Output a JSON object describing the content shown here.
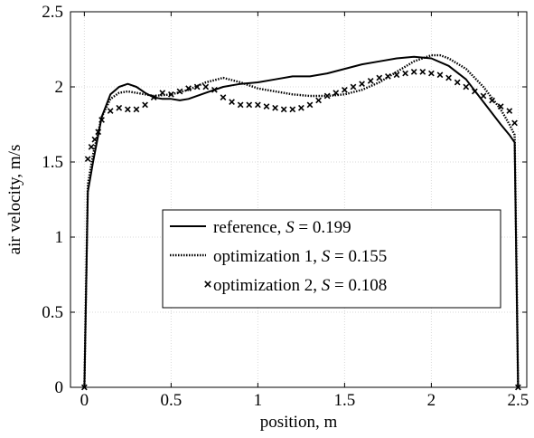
{
  "chart_data": {
    "type": "line",
    "xlabel": "position, m",
    "ylabel": "air velocity, m/s",
    "xlim": [
      -0.08,
      2.55
    ],
    "ylim": [
      0,
      2.5
    ],
    "xticks": [
      0,
      0.5,
      1,
      1.5,
      2,
      2.5
    ],
    "xtick_labels": [
      "0",
      "0.5",
      "1",
      "1.5",
      "2",
      "2.5"
    ],
    "yticks": [
      0,
      0.5,
      1,
      1.5,
      2,
      2.5
    ],
    "ytick_labels": [
      "0",
      "0.5",
      "1",
      "1.5",
      "2",
      "2.5"
    ],
    "grid": true,
    "legend_position": "center-right",
    "series": [
      {
        "name_prefix": "reference, ",
        "name_var": "S",
        "name_suffix": " = 0.199",
        "style": "solid",
        "color": "#000000",
        "x": [
          0,
          0.02,
          0.05,
          0.1,
          0.15,
          0.2,
          0.25,
          0.3,
          0.35,
          0.4,
          0.45,
          0.5,
          0.55,
          0.6,
          0.7,
          0.8,
          0.9,
          1.0,
          1.1,
          1.2,
          1.3,
          1.4,
          1.5,
          1.6,
          1.7,
          1.8,
          1.9,
          2.0,
          2.1,
          2.2,
          2.3,
          2.4,
          2.45,
          2.48,
          2.5
        ],
        "y": [
          0,
          1.3,
          1.5,
          1.8,
          1.95,
          2.0,
          2.02,
          2.0,
          1.96,
          1.93,
          1.92,
          1.92,
          1.91,
          1.92,
          1.96,
          2.0,
          2.02,
          2.03,
          2.05,
          2.07,
          2.07,
          2.09,
          2.12,
          2.15,
          2.17,
          2.19,
          2.2,
          2.19,
          2.14,
          2.05,
          1.9,
          1.75,
          1.68,
          1.63,
          0
        ]
      },
      {
        "name_prefix": "optimization 1, ",
        "name_var": "S",
        "name_suffix": " = 0.155",
        "style": "dotted",
        "color": "#000000",
        "x": [
          0,
          0.02,
          0.05,
          0.1,
          0.15,
          0.2,
          0.25,
          0.3,
          0.4,
          0.5,
          0.6,
          0.7,
          0.8,
          0.9,
          1.0,
          1.1,
          1.2,
          1.3,
          1.4,
          1.5,
          1.6,
          1.7,
          1.8,
          1.9,
          2.0,
          2.05,
          2.1,
          2.2,
          2.3,
          2.4,
          2.45,
          2.48,
          2.5
        ],
        "y": [
          0,
          1.35,
          1.55,
          1.8,
          1.92,
          1.96,
          1.97,
          1.96,
          1.94,
          1.95,
          1.98,
          2.03,
          2.06,
          2.03,
          1.99,
          1.97,
          1.95,
          1.94,
          1.94,
          1.95,
          1.98,
          2.03,
          2.1,
          2.17,
          2.21,
          2.21,
          2.19,
          2.12,
          2.0,
          1.85,
          1.75,
          1.68,
          0
        ]
      },
      {
        "name_prefix": "optimization 2, ",
        "name_var": "S",
        "name_suffix": " = 0.108",
        "style": "markers",
        "color": "#000000",
        "x": [
          0,
          0.02,
          0.04,
          0.06,
          0.08,
          0.1,
          0.15,
          0.2,
          0.25,
          0.3,
          0.35,
          0.4,
          0.45,
          0.5,
          0.55,
          0.6,
          0.65,
          0.7,
          0.75,
          0.8,
          0.85,
          0.9,
          0.95,
          1.0,
          1.05,
          1.1,
          1.15,
          1.2,
          1.25,
          1.3,
          1.35,
          1.4,
          1.45,
          1.5,
          1.55,
          1.6,
          1.65,
          1.7,
          1.75,
          1.8,
          1.85,
          1.9,
          1.95,
          2.0,
          2.05,
          2.1,
          2.15,
          2.2,
          2.25,
          2.3,
          2.35,
          2.4,
          2.45,
          2.48,
          2.5
        ],
        "y": [
          0,
          1.52,
          1.6,
          1.65,
          1.7,
          1.78,
          1.84,
          1.86,
          1.85,
          1.85,
          1.88,
          1.93,
          1.96,
          1.95,
          1.97,
          1.99,
          2.0,
          2.0,
          1.98,
          1.93,
          1.9,
          1.88,
          1.88,
          1.88,
          1.87,
          1.86,
          1.85,
          1.85,
          1.86,
          1.88,
          1.91,
          1.94,
          1.96,
          1.98,
          2.0,
          2.02,
          2.04,
          2.06,
          2.07,
          2.08,
          2.09,
          2.1,
          2.1,
          2.09,
          2.08,
          2.06,
          2.03,
          2.0,
          1.97,
          1.94,
          1.91,
          1.87,
          1.84,
          1.76,
          0
        ]
      }
    ]
  }
}
